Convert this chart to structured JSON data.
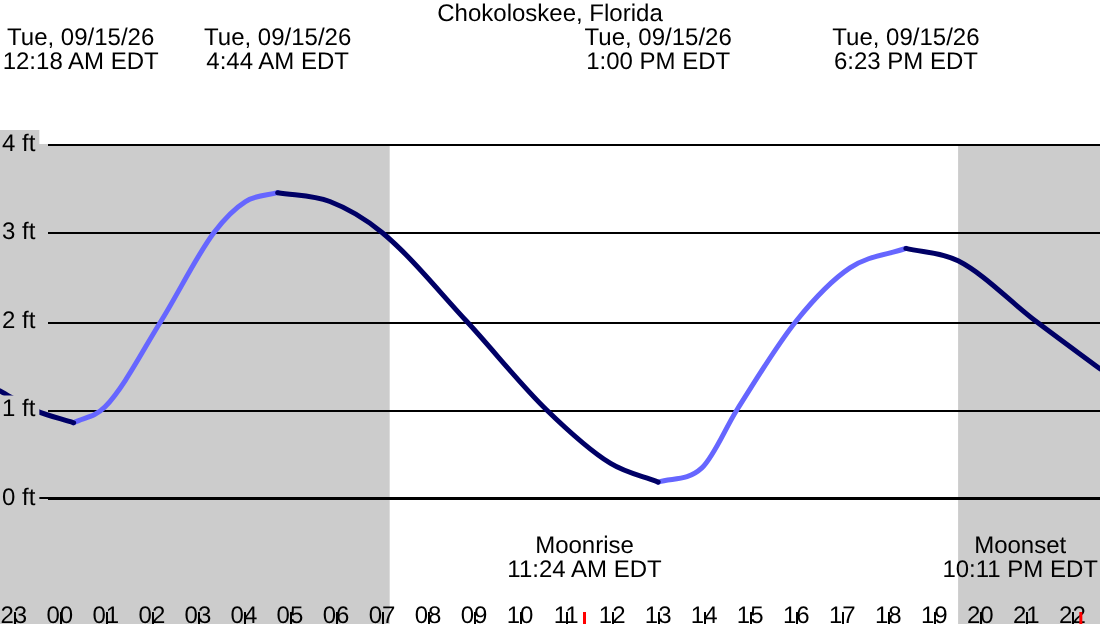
{
  "chart_data": {
    "type": "line",
    "title": "Chokoloskee, Florida",
    "x": [
      "--09-14T22:42",
      "--09-14T23:28",
      "--09-15T00:18",
      "--09-15T00:59",
      "--09-15T02:12",
      "--09-15T03:21",
      "--09-15T04:02",
      "--09-15T04:44",
      "--09-15T05:52",
      "--09-15T07:00",
      "--09-15T08:50",
      "--09-15T10:34",
      "--09-15T11:58",
      "--09-15T13:00",
      "--09-15T13:57",
      "--09-15T14:43",
      "--09-15T16:00",
      "--09-15T17:10",
      "--09-15T18:23",
      "--09-15T19:31",
      "--09-15T21:12",
      "--09-15T22:36"
    ],
    "series": [
      {
        "color": "#000066",
        "values": [
          1.21,
          0.99,
          0.85,
          null,
          null,
          null,
          null,
          3.45,
          3.35,
          3.0,
          2.0,
          1.0,
          0.39,
          0.18,
          null,
          null,
          null,
          null,
          2.82,
          2.68,
          2.0,
          1.46
        ]
      },
      {
        "color": "#6666ff",
        "values": [
          null,
          null,
          0.85,
          1.03,
          2.0,
          3.0,
          3.35,
          3.45,
          null,
          null,
          null,
          null,
          null,
          0.18,
          0.34,
          1.0,
          2.0,
          2.6,
          2.82,
          null,
          null,
          null
        ]
      }
    ],
    "xticks": [
      {
        "value": "--09-14T23:00",
        "label": "23"
      },
      {
        "value": "--09-15T00:00",
        "label": "00"
      },
      {
        "value": "--09-15T01:00",
        "label": "01"
      },
      {
        "value": "--09-15T02:00",
        "label": "02"
      },
      {
        "value": "--09-15T03:00",
        "label": "03"
      },
      {
        "value": "--09-15T04:00",
        "label": "04"
      },
      {
        "value": "--09-15T05:00",
        "label": "05"
      },
      {
        "value": "--09-15T06:00",
        "label": "06"
      },
      {
        "value": "--09-15T07:00",
        "label": "07"
      },
      {
        "value": "--09-15T08:00",
        "label": "08"
      },
      {
        "value": "--09-15T09:00",
        "label": "09"
      },
      {
        "value": "--09-15T10:00",
        "label": "10"
      },
      {
        "value": "--09-15T11:00",
        "label": "11"
      },
      {
        "value": "--09-15T12:00",
        "label": "12"
      },
      {
        "value": "--09-15T13:00",
        "label": "13"
      },
      {
        "value": "--09-15T14:00",
        "label": "14"
      },
      {
        "value": "--09-15T15:00",
        "label": "15"
      },
      {
        "value": "--09-15T16:00",
        "label": "16"
      },
      {
        "value": "--09-15T17:00",
        "label": "17"
      },
      {
        "value": "--09-15T18:00",
        "label": "18"
      },
      {
        "value": "--09-15T19:00",
        "label": "19"
      },
      {
        "value": "--09-15T20:00",
        "label": "20"
      },
      {
        "value": "--09-15T21:00",
        "label": "21"
      },
      {
        "value": "--09-15T22:00",
        "label": "22"
      }
    ],
    "xlim": [
      "--09-14T22:42",
      "--09-15T22:36"
    ],
    "ylim": [
      0,
      4
    ],
    "yticks": [
      {
        "value": 0,
        "label": "0 ft"
      },
      {
        "value": 1,
        "label": "1 ft"
      },
      {
        "value": 2,
        "label": "2 ft"
      },
      {
        "value": 3,
        "label": "3 ft"
      },
      {
        "value": 4,
        "label": "4 ft"
      }
    ],
    "grid": "y",
    "marker": "none",
    "bands": [
      {
        "axis": "x",
        "from": "--09-14T22:42",
        "to": "--09-15T07:10",
        "color": "#cccccc"
      },
      {
        "axis": "x",
        "from": "--09-15T19:31",
        "to": "--09-15T22:36",
        "color": "#cccccc"
      }
    ],
    "ref_lines": [
      {
        "axis": "x",
        "value": "--09-15T11:24",
        "label": "Moonrise\n11:24 AM EDT",
        "color": "#ff0000"
      },
      {
        "axis": "x",
        "value": "--09-15T22:11",
        "label": "Moonset\n10:11 PM EDT",
        "color": "#ff0000"
      }
    ],
    "annotations": [
      "Tue, 09/15/26\n12:18 AM EDT",
      "Tue, 09/15/26\n4:44 AM EDT",
      "Tue, 09/15/26\n1:00 PM EDT",
      "Tue, 09/15/26\n6:23 PM EDT"
    ]
  }
}
